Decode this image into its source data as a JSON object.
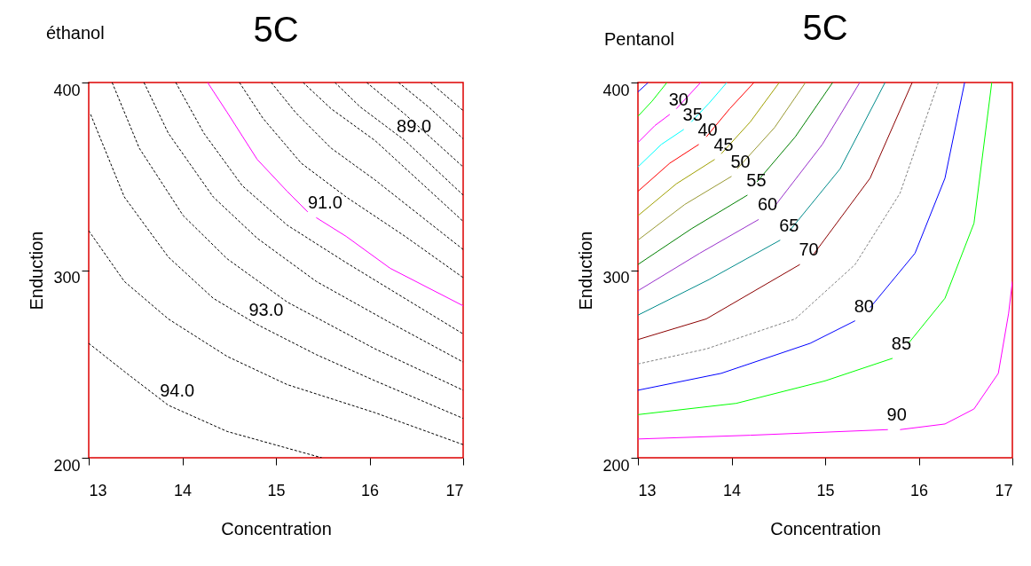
{
  "chart_data": [
    {
      "type": "line",
      "title": "5C",
      "subtitle": "éthanol",
      "xlabel": "Concentration",
      "ylabel": "Enduction",
      "xlim": [
        13,
        17
      ],
      "ylim": [
        200,
        400
      ],
      "xticks": [
        13,
        14,
        15,
        16,
        17
      ],
      "yticks": [
        200,
        300,
        400
      ],
      "line_style": "dashed",
      "legend": false,
      "grid": false,
      "series": [
        {
          "color": "#000000",
          "x": [
            16.65,
            17
          ],
          "values": [
            400,
            385
          ]
        },
        {
          "color": "#000000",
          "x": [
            16.31,
            16.63,
            17
          ],
          "values": [
            400,
            387,
            370
          ]
        },
        {
          "color": "#000000",
          "x": [
            15.97,
            16.38,
            17
          ],
          "values": [
            400,
            383,
            355
          ]
        },
        {
          "color": "#000000",
          "x": [
            15.63,
            15.9,
            16.38,
            17
          ],
          "values": [
            400,
            387,
            369,
            340
          ]
        },
        {
          "color": "#000000",
          "x": [
            15.29,
            15.59,
            16.06,
            17
          ],
          "values": [
            400,
            386,
            369,
            326
          ]
        },
        {
          "color": "#000000",
          "x": [
            14.95,
            15.21,
            15.59,
            16.06,
            17
          ],
          "values": [
            400,
            384,
            365,
            348,
            311
          ]
        },
        {
          "color": "#000000",
          "x": [
            14.61,
            14.86,
            15.27,
            15.75,
            16.38,
            17
          ],
          "values": [
            400,
            381,
            357,
            339,
            318,
            296
          ]
        },
        {
          "color": "#ff00ff",
          "line_style": "solid",
          "x": [
            14.27,
            14.48,
            14.8,
            15.12,
            15.34,
            15.38,
            15.43,
            15.75,
            16.22,
            17
          ],
          "values": [
            400,
            384,
            359,
            342,
            331,
            null,
            328,
            318,
            301,
            281
          ]
        },
        {
          "color": "#000000",
          "x": [
            13.93,
            14.23,
            14.64,
            15.12,
            15.75,
            17
          ],
          "values": [
            400,
            373,
            345,
            324,
            304,
            266
          ]
        },
        {
          "color": "#000000",
          "x": [
            13.59,
            13.85,
            14.33,
            14.8,
            15.43,
            16.22,
            17
          ],
          "values": [
            400,
            373,
            339,
            317,
            294,
            272,
            251
          ]
        },
        {
          "color": "#000000",
          "x": [
            13.25,
            13.54,
            14.01,
            14.48,
            15.12,
            16.06,
            17
          ],
          "values": [
            400,
            365,
            329,
            306,
            283,
            258,
            236
          ]
        },
        {
          "color": "#000000",
          "x": [
            13.02,
            13.38,
            13.85,
            14.33,
            14.8,
            15.43,
            16.06,
            17
          ],
          "values": [
            383,
            339,
            307,
            285,
            271,
            255,
            241,
            221
          ]
        },
        {
          "color": "#000000",
          "x": [
            13,
            13.38,
            13.85,
            14.48,
            15.12,
            16.06,
            17
          ],
          "values": [
            321,
            294,
            274,
            254,
            239,
            224,
            207
          ]
        },
        {
          "color": "#000000",
          "x": [
            13,
            13.38,
            13.85,
            14.48,
            15.49
          ],
          "values": [
            261,
            246,
            228,
            214,
            200
          ]
        }
      ],
      "annotations": [
        {
          "text": "89.0",
          "x": 16.38,
          "y": 369
        },
        {
          "text": "91.0",
          "x": 15.43,
          "y": 328
        },
        {
          "text": "93.0",
          "x": 14.8,
          "y": 271
        },
        {
          "text": "94.0",
          "x": 13.85,
          "y": 228
        }
      ]
    },
    {
      "type": "line",
      "title": "5C",
      "subtitle": "Pentanol",
      "xlabel": "Concentration",
      "ylabel": "Enduction",
      "xlim": [
        13,
        17
      ],
      "ylim": [
        200,
        400
      ],
      "xticks": [
        13,
        14,
        15,
        16,
        17
      ],
      "yticks": [
        200,
        300,
        400
      ],
      "line_style": "solid",
      "legend": false,
      "grid": false,
      "series": [
        {
          "color": "#0000ff",
          "x": [
            13,
            13.11
          ],
          "values": [
            395,
            400
          ]
        },
        {
          "color": "#00ff00",
          "x": [
            13,
            13.15,
            13.31
          ],
          "values": [
            382,
            390,
            400
          ]
        },
        {
          "color": "#ff00ff",
          "x": [
            13,
            13.18,
            13.34,
            13.38,
            13.41,
            13.67
          ],
          "values": [
            368,
            377,
            383,
            null,
            386,
            400
          ]
        },
        {
          "color": "#00ffff",
          "x": [
            13,
            13.25,
            13.49,
            13.53,
            13.57,
            13.76,
            13.95
          ],
          "values": [
            355,
            367,
            375,
            null,
            379,
            389,
            400
          ]
        },
        {
          "color": "#ff0000",
          "x": [
            13,
            13.34,
            13.65,
            13.69,
            13.73,
            13.98,
            14.24
          ],
          "values": [
            342,
            357,
            367,
            null,
            371,
            386,
            400
          ]
        },
        {
          "color": "#a0a000",
          "x": [
            13,
            13.41,
            13.82,
            13.85,
            13.89,
            14.2,
            14.51
          ],
          "values": [
            329,
            346,
            359,
            null,
            362,
            379,
            400
          ]
        },
        {
          "color": "#999933",
          "x": [
            13,
            13.5,
            14.0,
            14.03,
            14.06,
            14.46,
            14.79
          ],
          "values": [
            316,
            335,
            350,
            null,
            354,
            376,
            400
          ]
        },
        {
          "color": "#008000",
          "x": [
            13,
            13.57,
            14.17,
            14.22,
            14.27,
            14.68,
            15.08
          ],
          "values": [
            303,
            322,
            340,
            null,
            347,
            371,
            400
          ]
        },
        {
          "color": "#9932cc",
          "x": [
            13,
            13.66,
            14.29,
            14.38,
            14.46,
            14.97,
            15.37
          ],
          "values": [
            289,
            309,
            327,
            null,
            334,
            367,
            400
          ]
        },
        {
          "color": "#008b8b",
          "x": [
            13,
            13.76,
            14.52,
            14.57,
            14.62,
            15.16,
            15.64
          ],
          "values": [
            276,
            295,
            316,
            null,
            321,
            354,
            400
          ]
        },
        {
          "color": "#8b0000",
          "x": [
            13,
            13.73,
            14.73,
            14.8,
            14.87,
            15.48,
            15.93
          ],
          "values": [
            263,
            274,
            303,
            null,
            308,
            349,
            400
          ]
        },
        {
          "color": "#808080",
          "line_style": "dashed",
          "x": [
            13,
            13.73,
            14.68,
            15.32,
            15.8,
            16.21
          ],
          "values": [
            250,
            258,
            274,
            303,
            341,
            400
          ]
        },
        {
          "color": "#0000ff",
          "x": [
            13,
            13.89,
            14.84,
            15.32,
            15.4,
            15.48,
            15.96,
            16.28,
            16.49
          ],
          "values": [
            236,
            245,
            261,
            273,
            null,
            280,
            309,
            349,
            400
          ]
        },
        {
          "color": "#00ff00",
          "x": [
            13,
            14.05,
            15.0,
            15.72,
            15.81,
            15.89,
            16.28,
            16.59,
            16.78
          ],
          "values": [
            223,
            229,
            241,
            253,
            null,
            261,
            285,
            325,
            400
          ]
        },
        {
          "color": "#ff00ff",
          "x": [
            13,
            14.2,
            15.67,
            15.73,
            15.8,
            16.28,
            16.59,
            16.85,
            16.96,
            17
          ],
          "values": [
            210,
            212,
            215,
            null,
            215,
            218,
            226,
            245,
            277,
            294
          ]
        }
      ],
      "annotations": [
        {
          "text": "30",
          "x": 13.34,
          "y": 383
        },
        {
          "text": "35",
          "x": 13.49,
          "y": 375
        },
        {
          "text": "40",
          "x": 13.65,
          "y": 367
        },
        {
          "text": "45",
          "x": 13.82,
          "y": 359
        },
        {
          "text": "50",
          "x": 14.0,
          "y": 350
        },
        {
          "text": "55",
          "x": 14.17,
          "y": 340
        },
        {
          "text": "60",
          "x": 14.29,
          "y": 327
        },
        {
          "text": "65",
          "x": 14.52,
          "y": 316
        },
        {
          "text": "70",
          "x": 14.73,
          "y": 303
        },
        {
          "text": "80",
          "x": 15.32,
          "y": 273
        },
        {
          "text": "85",
          "x": 15.72,
          "y": 253
        },
        {
          "text": "90",
          "x": 15.67,
          "y": 215
        }
      ]
    }
  ]
}
